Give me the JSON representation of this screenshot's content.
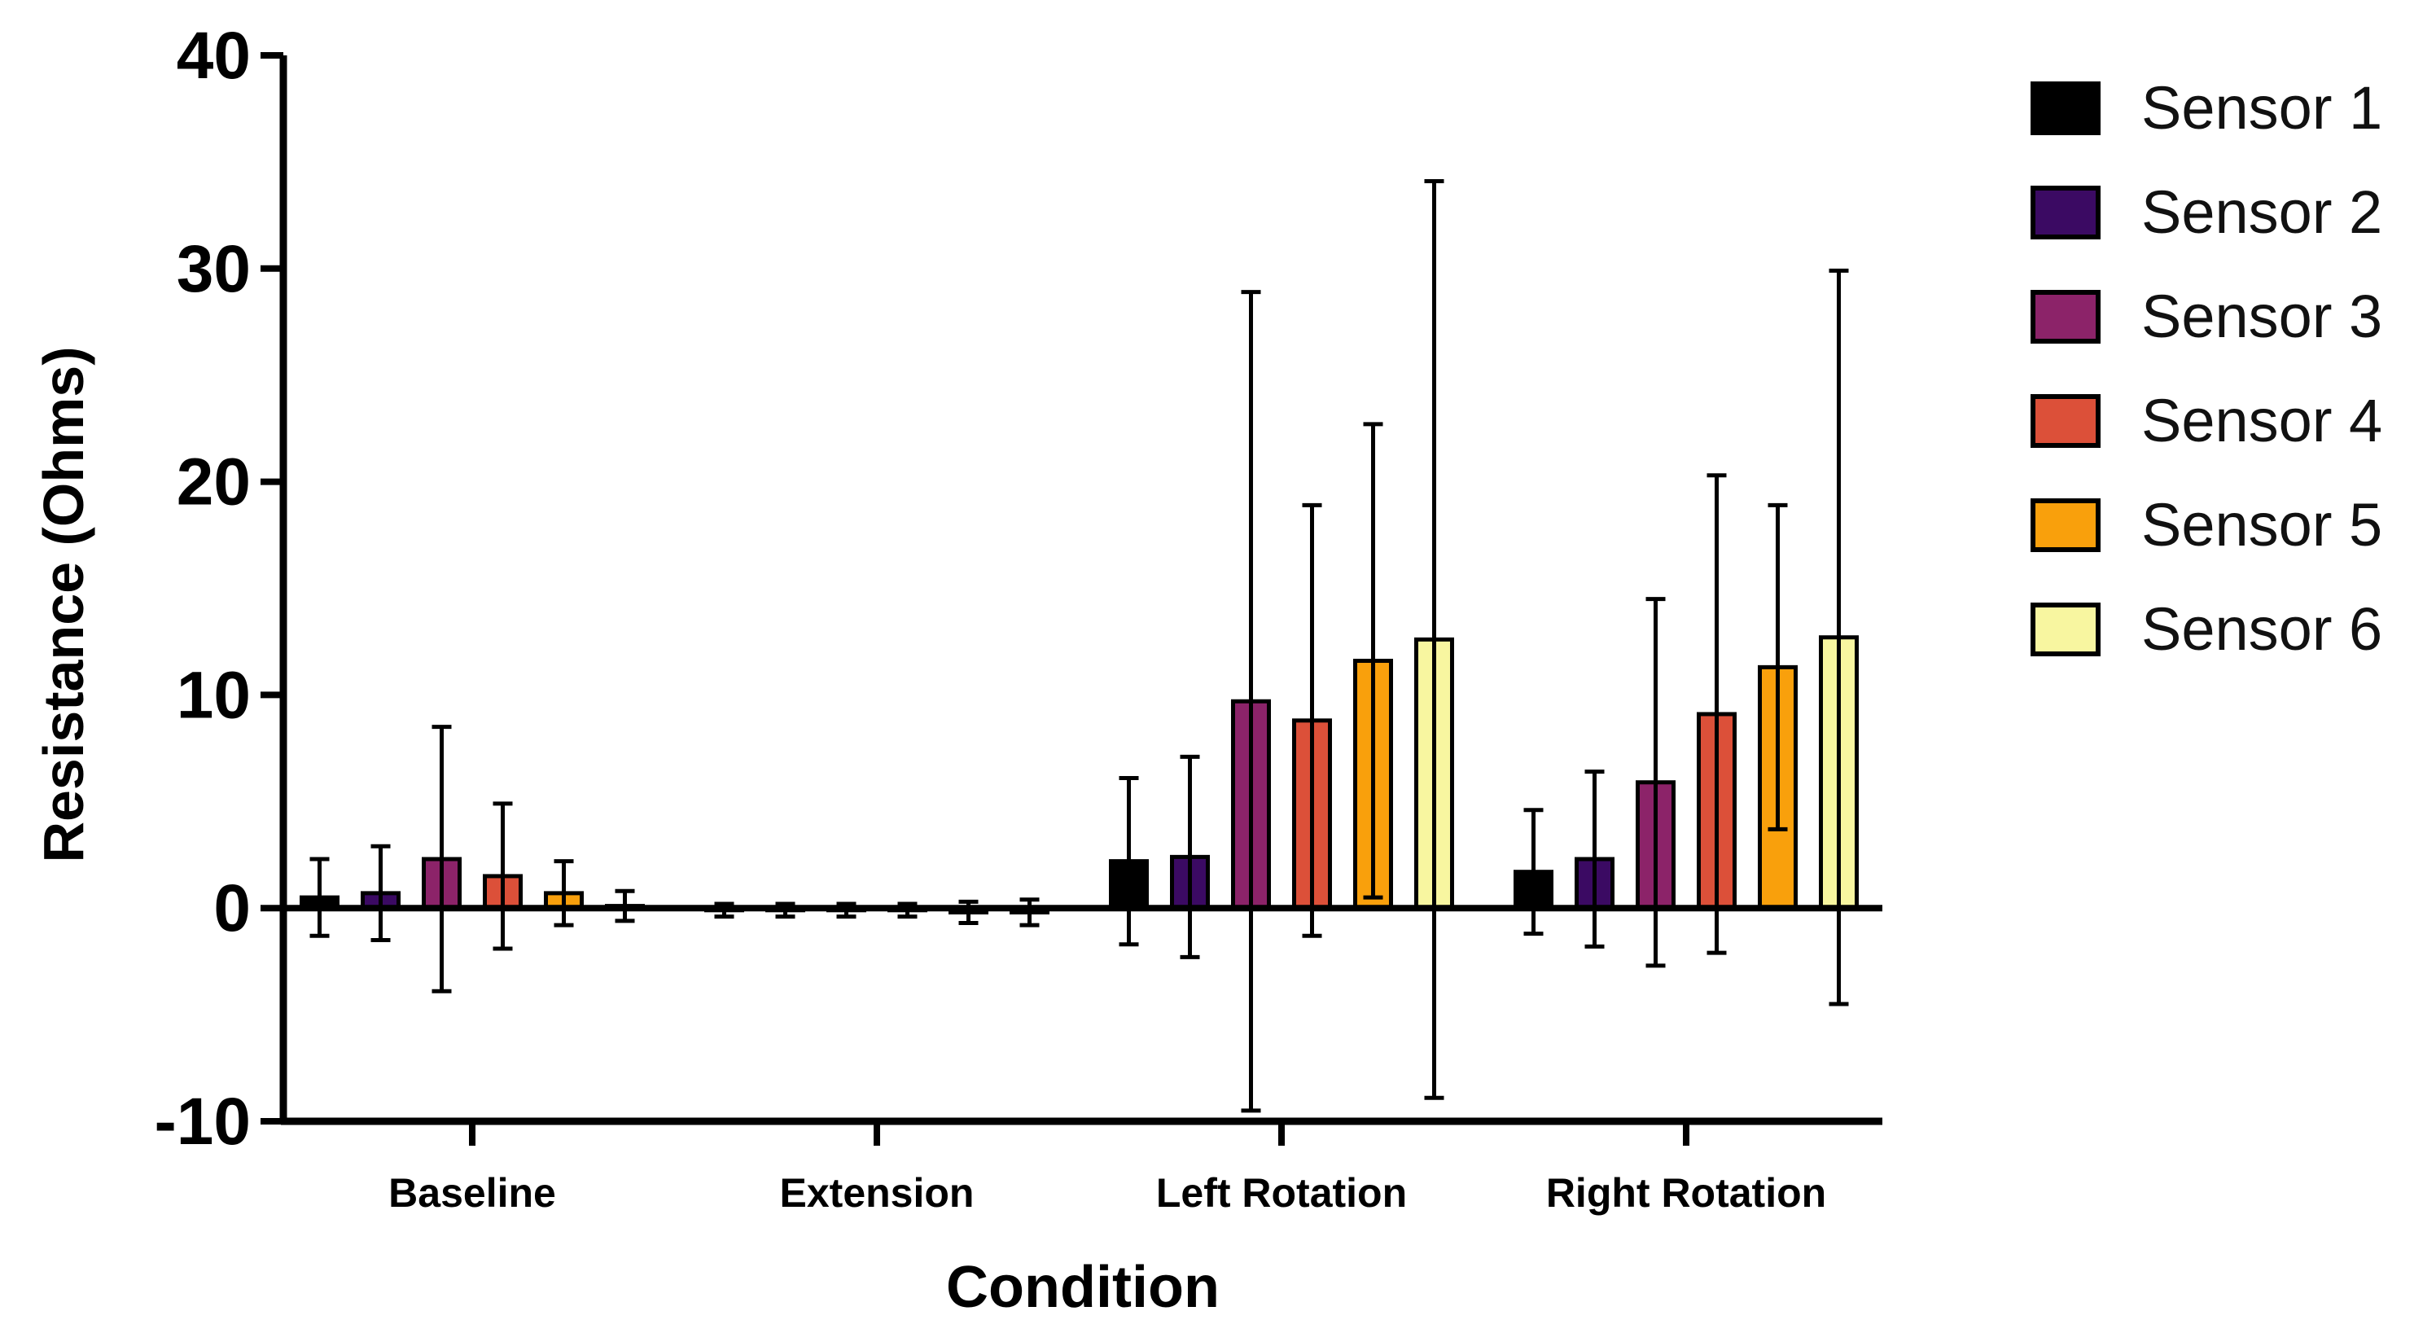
{
  "chart_data": {
    "type": "bar",
    "title": "",
    "xlabel": "Condition",
    "ylabel": "Resistance (Ohms)",
    "ylim": [
      -10,
      40
    ],
    "yticks": [
      "-10",
      "0",
      "10",
      "20",
      "30",
      "40"
    ],
    "grid": false,
    "legend_position": "right",
    "error_bars": "upper and lower",
    "categories": [
      "Baseline",
      "Extension",
      "Left Rotation",
      "Right Rotation"
    ],
    "series": [
      {
        "name": "Sensor 1",
        "color": "#000000",
        "values": [
          0.5,
          -0.1,
          2.2,
          1.7
        ],
        "errors": [
          1.8,
          0.3,
          3.9,
          2.9
        ]
      },
      {
        "name": "Sensor 2",
        "color": "#3b0a63",
        "values": [
          0.7,
          -0.1,
          2.4,
          2.3
        ],
        "errors": [
          2.2,
          0.3,
          4.7,
          4.1
        ]
      },
      {
        "name": "Sensor 3",
        "color": "#8c2369",
        "values": [
          2.3,
          -0.1,
          9.7,
          5.9
        ],
        "errors": [
          6.2,
          0.3,
          19.2,
          8.6
        ]
      },
      {
        "name": "Sensor 4",
        "color": "#dc5039",
        "values": [
          1.5,
          -0.1,
          8.8,
          9.1
        ],
        "errors": [
          3.4,
          0.3,
          10.1,
          11.2
        ]
      },
      {
        "name": "Sensor 5",
        "color": "#f9a00c",
        "values": [
          0.7,
          -0.2,
          11.6,
          11.3
        ],
        "errors": [
          1.5,
          0.5,
          11.1,
          7.6
        ]
      },
      {
        "name": "Sensor 6",
        "color": "#f8f6a0",
        "values": [
          0.1,
          -0.2,
          12.6,
          12.7
        ],
        "errors": [
          0.7,
          0.6,
          21.5,
          17.2
        ]
      }
    ]
  }
}
